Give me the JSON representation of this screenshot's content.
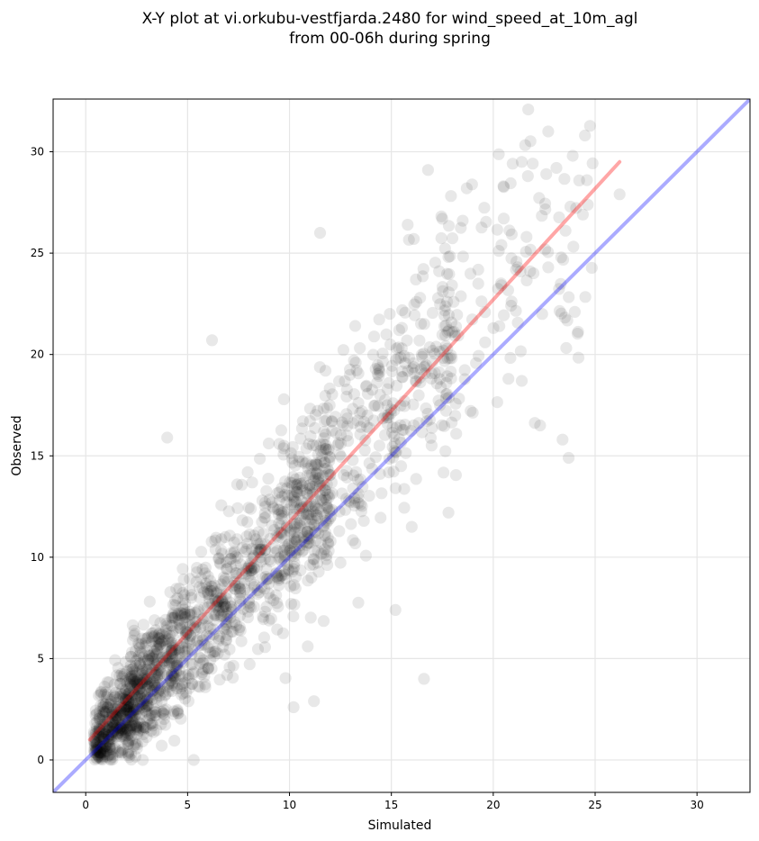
{
  "chart_data": {
    "type": "scatter",
    "title_lines": [
      "X-Y plot at vi.orkubu-vestfjarda.2480 for wind_speed_at_10m_agl",
      "from 00-06h during spring"
    ],
    "xlabel": "Simulated",
    "ylabel": "Observed",
    "xlim": [
      -1.6,
      32.6
    ],
    "ylim": [
      -1.6,
      32.6
    ],
    "xticks": [
      0,
      5,
      10,
      15,
      20,
      25,
      30
    ],
    "yticks": [
      0,
      5,
      10,
      15,
      20,
      25,
      30
    ],
    "grid": true,
    "point_color": "#000000",
    "point_alpha": 0.09,
    "notable_points": [
      {
        "x": 16.6,
        "y": 4.0
      },
      {
        "x": 15.2,
        "y": 7.4
      },
      {
        "x": 10.2,
        "y": 2.6
      },
      {
        "x": 11.2,
        "y": 2.9
      },
      {
        "x": 6.2,
        "y": 20.7
      },
      {
        "x": 11.5,
        "y": 26.0
      },
      {
        "x": 16.8,
        "y": 29.1
      },
      {
        "x": 22.7,
        "y": 31.0
      },
      {
        "x": 24.5,
        "y": 30.8
      },
      {
        "x": 23.9,
        "y": 29.8
      },
      {
        "x": 23.1,
        "y": 29.2
      },
      {
        "x": 22.6,
        "y": 28.9
      },
      {
        "x": 21.4,
        "y": 29.5
      },
      {
        "x": 26.2,
        "y": 27.9
      },
      {
        "x": 24.6,
        "y": 28.6
      },
      {
        "x": 24.4,
        "y": 26.9
      },
      {
        "x": 22.4,
        "y": 22.0
      },
      {
        "x": 22.3,
        "y": 16.5
      },
      {
        "x": 21.4,
        "y": 18.7
      },
      {
        "x": 23.4,
        "y": 15.8
      },
      {
        "x": 23.7,
        "y": 14.9
      },
      {
        "x": 24.0,
        "y": 22.1
      },
      {
        "x": 18.5,
        "y": 26.6
      },
      {
        "x": 18.7,
        "y": 28.2
      },
      {
        "x": 20.5,
        "y": 28.3
      },
      {
        "x": 21.7,
        "y": 28.8
      },
      {
        "x": 20.4,
        "y": 25.4
      },
      {
        "x": 22.7,
        "y": 24.3
      },
      {
        "x": 17.8,
        "y": 12.2
      },
      {
        "x": 16.0,
        "y": 11.5
      },
      {
        "x": 4.0,
        "y": 15.9
      },
      {
        "x": 5.3,
        "y": 0.0
      },
      {
        "x": 2.8,
        "y": 0.0
      },
      {
        "x": 19.6,
        "y": 20.6
      },
      {
        "x": 20.3,
        "y": 21.4
      },
      {
        "x": 15.8,
        "y": 26.4
      },
      {
        "x": 16.1,
        "y": 25.7
      }
    ],
    "series": [
      {
        "kind": "line",
        "color": "#ff0000",
        "alpha": 0.35,
        "x": [
          0.2,
          26.2
        ],
        "y": [
          1.0,
          29.5
        ]
      },
      {
        "kind": "line",
        "color": "#0000ff",
        "alpha": 0.33,
        "x": [
          -1.6,
          32.6
        ],
        "y": [
          -1.6,
          32.6
        ]
      }
    ]
  }
}
